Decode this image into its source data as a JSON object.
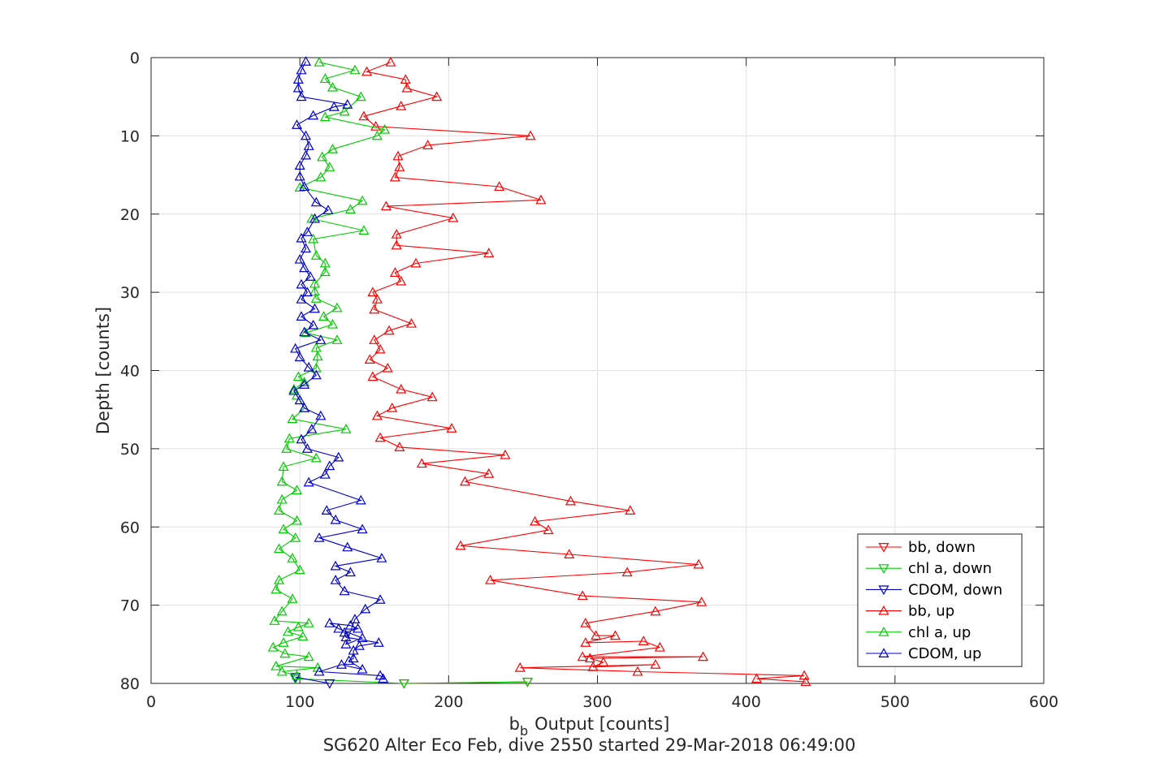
{
  "chart_data": {
    "type": "line",
    "xlabel_main": "b",
    "xlabel_sub": "b",
    "xlabel_rest": "Output [counts]",
    "ylabel": "Depth [counts]",
    "caption": "SG620 Alter Eco Feb, dive 2550 started 29-Mar-2018 06:49:00",
    "xlim": [
      0,
      600
    ],
    "ylim": [
      0,
      80
    ],
    "y_reversed": true,
    "grid": true,
    "legend_position": "bottom-right",
    "x_ticks": [
      0,
      100,
      200,
      300,
      400,
      500,
      600
    ],
    "y_ticks": [
      0,
      10,
      20,
      30,
      40,
      50,
      60,
      70,
      80
    ],
    "series": [
      {
        "name": "bb, down",
        "color": "#ff0000",
        "marker": "triangle-down",
        "points": [
          [
            170,
            80.0
          ],
          [
            253,
            79.8
          ]
        ]
      },
      {
        "name": "chl a, down",
        "color": "#00cc00",
        "marker": "triangle-down",
        "points": [
          [
            97,
            79.4
          ],
          [
            170,
            80.0
          ],
          [
            253,
            79.8
          ]
        ]
      },
      {
        "name": "CDOM, down",
        "color": "#0000cc",
        "marker": "triangle-down",
        "points": [
          [
            120,
            80.0
          ],
          [
            97,
            79.2
          ]
        ]
      },
      {
        "name": "bb, up",
        "color": "#ff0000",
        "marker": "triangle-up",
        "points": [
          [
            440,
            79.8
          ],
          [
            407,
            79.4
          ],
          [
            439,
            79.0
          ],
          [
            327,
            78.5
          ],
          [
            248,
            78.0
          ],
          [
            339,
            77.6
          ],
          [
            297,
            77.9
          ],
          [
            304,
            77.3
          ],
          [
            295,
            76.8
          ],
          [
            371,
            76.6
          ],
          [
            290,
            76.6
          ],
          [
            342,
            75.4
          ],
          [
            331,
            74.6
          ],
          [
            292,
            74.8
          ],
          [
            312,
            73.9
          ],
          [
            299,
            73.9
          ],
          [
            292,
            72.3
          ],
          [
            339,
            70.8
          ],
          [
            370,
            69.6
          ],
          [
            290,
            68.8
          ],
          [
            228,
            66.8
          ],
          [
            320,
            65.8
          ],
          [
            368,
            64.8
          ],
          [
            281,
            63.5
          ],
          [
            208,
            62.4
          ],
          [
            267,
            60.4
          ],
          [
            258,
            59.3
          ],
          [
            322,
            57.9
          ],
          [
            282,
            56.7
          ],
          [
            211,
            54.2
          ],
          [
            227,
            53.2
          ],
          [
            182,
            51.9
          ],
          [
            238,
            50.8
          ],
          [
            167,
            49.8
          ],
          [
            154,
            48.6
          ],
          [
            202,
            47.4
          ],
          [
            152,
            45.8
          ],
          [
            162,
            44.8
          ],
          [
            189,
            43.4
          ],
          [
            168,
            42.4
          ],
          [
            149,
            40.8
          ],
          [
            159,
            39.7
          ],
          [
            147,
            38.6
          ],
          [
            154,
            37.3
          ],
          [
            150,
            36.1
          ],
          [
            160,
            34.9
          ],
          [
            175,
            34.0
          ],
          [
            150,
            32.2
          ],
          [
            152,
            30.9
          ],
          [
            149,
            30.0
          ],
          [
            168,
            28.6
          ],
          [
            164,
            27.5
          ],
          [
            178,
            26.3
          ],
          [
            227,
            25.0
          ],
          [
            165,
            24.0
          ],
          [
            165,
            22.6
          ],
          [
            203,
            20.5
          ],
          [
            158,
            19.0
          ],
          [
            262,
            18.2
          ],
          [
            234,
            16.5
          ],
          [
            164,
            15.3
          ],
          [
            167,
            14.0
          ],
          [
            166,
            12.6
          ],
          [
            186,
            11.2
          ],
          [
            255,
            10.0
          ],
          [
            151,
            8.8
          ],
          [
            143,
            7.5
          ],
          [
            168,
            6.2
          ],
          [
            192,
            5.0
          ],
          [
            172,
            3.9
          ],
          [
            171,
            2.8
          ],
          [
            145,
            1.8
          ],
          [
            161,
            0.6
          ]
        ]
      },
      {
        "name": "chl a, up",
        "color": "#00cc00",
        "marker": "triangle-up",
        "points": [
          [
            98,
            79.0
          ],
          [
            88,
            78.5
          ],
          [
            112,
            78.0
          ],
          [
            84,
            77.8
          ],
          [
            106,
            76.6
          ],
          [
            90,
            76.2
          ],
          [
            82,
            75.4
          ],
          [
            89,
            74.8
          ],
          [
            102,
            74.0
          ],
          [
            92,
            73.4
          ],
          [
            99,
            72.8
          ],
          [
            106,
            72.3
          ],
          [
            83,
            72.0
          ],
          [
            88,
            70.8
          ],
          [
            95,
            69.2
          ],
          [
            84,
            68.0
          ],
          [
            86,
            66.8
          ],
          [
            100,
            65.5
          ],
          [
            95,
            64.0
          ],
          [
            86,
            62.8
          ],
          [
            97,
            61.4
          ],
          [
            89,
            60.3
          ],
          [
            98,
            59.2
          ],
          [
            86,
            57.9
          ],
          [
            88,
            56.5
          ],
          [
            98,
            55.3
          ],
          [
            88,
            54.2
          ],
          [
            89,
            52.3
          ],
          [
            111,
            51.2
          ],
          [
            91,
            50.0
          ],
          [
            93,
            48.7
          ],
          [
            131,
            47.5
          ],
          [
            95,
            46.2
          ],
          [
            103,
            44.8
          ],
          [
            98,
            43.2
          ],
          [
            96,
            42.4
          ],
          [
            103,
            41.5
          ],
          [
            99,
            40.8
          ],
          [
            111,
            39.7
          ],
          [
            112,
            38.2
          ],
          [
            111,
            37.1
          ],
          [
            125,
            36.1
          ],
          [
            104,
            35.2
          ],
          [
            122,
            34.1
          ],
          [
            116,
            33.1
          ],
          [
            125,
            32.0
          ],
          [
            111,
            30.8
          ],
          [
            110,
            29.9
          ],
          [
            110,
            28.9
          ],
          [
            117,
            27.4
          ],
          [
            117,
            26.3
          ],
          [
            111,
            25.3
          ],
          [
            109,
            23.2
          ],
          [
            143,
            22.1
          ],
          [
            108,
            20.6
          ],
          [
            134,
            19.4
          ],
          [
            142,
            18.3
          ],
          [
            100,
            16.6
          ],
          [
            114,
            15.3
          ],
          [
            120,
            14.0
          ],
          [
            115,
            12.7
          ],
          [
            122,
            11.7
          ],
          [
            152,
            10.0
          ],
          [
            157,
            9.2
          ],
          [
            117,
            7.6
          ],
          [
            130,
            6.9
          ],
          [
            141,
            5.0
          ],
          [
            122,
            3.8
          ],
          [
            117,
            2.7
          ],
          [
            137,
            1.6
          ],
          [
            113,
            0.6
          ]
        ]
      },
      {
        "name": "CDOM, up",
        "color": "#0000cc",
        "marker": "triangle-up",
        "points": [
          [
            156,
            79.4
          ],
          [
            154,
            79.0
          ],
          [
            113,
            78.5
          ],
          [
            128,
            77.6
          ],
          [
            142,
            78.2
          ],
          [
            133,
            77.1
          ],
          [
            136,
            76.8
          ],
          [
            136,
            75.8
          ],
          [
            140,
            75.2
          ],
          [
            153,
            74.8
          ],
          [
            131,
            74.1
          ],
          [
            130,
            73.5
          ],
          [
            139,
            73.0
          ],
          [
            134,
            72.6
          ],
          [
            120,
            72.3
          ],
          [
            126,
            73.0
          ],
          [
            142,
            74.2
          ],
          [
            131,
            75.0
          ],
          [
            137,
            71.8
          ],
          [
            144,
            70.5
          ],
          [
            154,
            69.3
          ],
          [
            130,
            68.2
          ],
          [
            124,
            66.8
          ],
          [
            134,
            65.8
          ],
          [
            124,
            65.0
          ],
          [
            155,
            64.0
          ],
          [
            132,
            62.6
          ],
          [
            113,
            61.4
          ],
          [
            142,
            60.3
          ],
          [
            124,
            59.1
          ],
          [
            118,
            57.9
          ],
          [
            141,
            56.6
          ],
          [
            106,
            54.3
          ],
          [
            117,
            53.3
          ],
          [
            120,
            52.2
          ],
          [
            126,
            51.1
          ],
          [
            105,
            50.0
          ],
          [
            101,
            48.8
          ],
          [
            108,
            47.5
          ],
          [
            114,
            45.8
          ],
          [
            103,
            44.8
          ],
          [
            100,
            43.8
          ],
          [
            96,
            42.6
          ],
          [
            103,
            41.8
          ],
          [
            111,
            40.6
          ],
          [
            106,
            39.6
          ],
          [
            100,
            38.3
          ],
          [
            97,
            37.2
          ],
          [
            114,
            36.1
          ],
          [
            103,
            35.1
          ],
          [
            109,
            34.2
          ],
          [
            101,
            33.1
          ],
          [
            110,
            32.1
          ],
          [
            101,
            30.9
          ],
          [
            105,
            30.0
          ],
          [
            101,
            29.0
          ],
          [
            107,
            28.0
          ],
          [
            103,
            26.9
          ],
          [
            100,
            25.8
          ],
          [
            104,
            24.4
          ],
          [
            101,
            23.1
          ],
          [
            105,
            22.3
          ],
          [
            110,
            20.6
          ],
          [
            119,
            19.5
          ],
          [
            111,
            18.5
          ],
          [
            103,
            16.5
          ],
          [
            100,
            15.2
          ],
          [
            100,
            13.8
          ],
          [
            104,
            12.5
          ],
          [
            106,
            11.3
          ],
          [
            104,
            10.0
          ],
          [
            98,
            8.6
          ],
          [
            109,
            7.4
          ],
          [
            123,
            6.3
          ],
          [
            132,
            6.0
          ],
          [
            101,
            5.0
          ],
          [
            99,
            3.9
          ],
          [
            99,
            2.8
          ],
          [
            101,
            1.6
          ],
          [
            104,
            0.5
          ]
        ]
      }
    ]
  }
}
